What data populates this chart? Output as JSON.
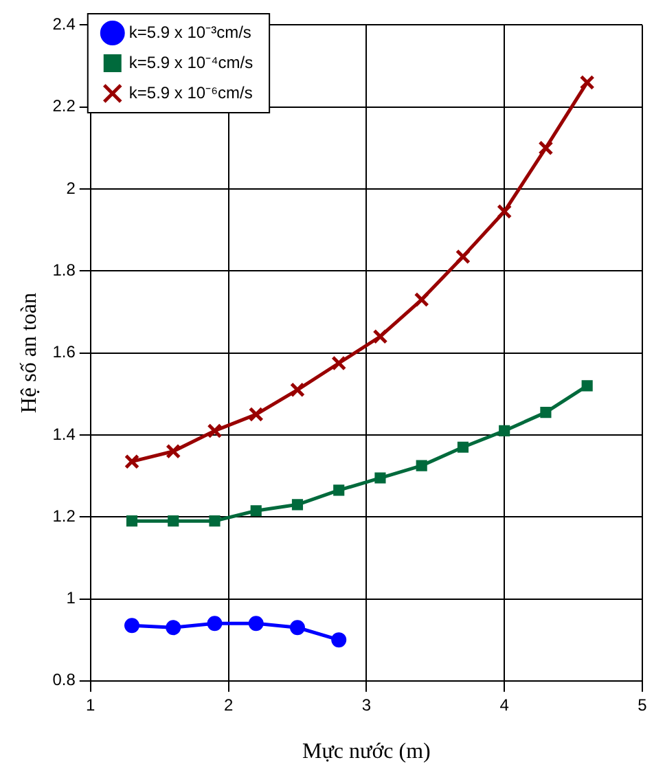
{
  "chart_data": {
    "type": "line",
    "xlabel": "Mực nước (m)",
    "ylabel": "Hệ số an toàn",
    "xlim": [
      1,
      5
    ],
    "xticks": [
      1,
      2,
      3,
      4,
      5
    ],
    "ylim": [
      0.8,
      2.4
    ],
    "yticks": [
      0.8,
      1,
      1.2,
      1.4,
      1.6,
      1.8,
      2,
      2.2,
      2.4
    ],
    "grid": true,
    "legend": "top left",
    "line_style": "solid",
    "series": [
      {
        "name": "k=5.9 x 10⁻³cm/s",
        "color": "#0000ff",
        "marker": "circle",
        "x": [
          1.3,
          1.6,
          1.9,
          2.2,
          2.5,
          2.8
        ],
        "values": [
          0.935,
          0.93,
          0.94,
          0.94,
          0.93,
          0.9
        ]
      },
      {
        "name": "k=5.9 x 10⁻⁴cm/s",
        "color": "#006a3c",
        "marker": "square",
        "x": [
          1.3,
          1.6,
          1.9,
          2.2,
          2.5,
          2.8,
          3.1,
          3.4,
          3.7,
          4.0,
          4.3,
          4.6
        ],
        "values": [
          1.19,
          1.19,
          1.19,
          1.215,
          1.23,
          1.265,
          1.295,
          1.325,
          1.37,
          1.41,
          1.455,
          1.52
        ]
      },
      {
        "name": "k=5.9 x 10⁻⁶cm/s",
        "color": "#990000",
        "marker": "cross",
        "x": [
          1.3,
          1.6,
          1.9,
          2.2,
          2.5,
          2.8,
          3.1,
          3.4,
          3.7,
          4.0,
          4.3,
          4.6
        ],
        "values": [
          1.335,
          1.36,
          1.41,
          1.45,
          1.51,
          1.575,
          1.64,
          1.73,
          1.835,
          1.945,
          2.1,
          2.26
        ]
      }
    ]
  }
}
